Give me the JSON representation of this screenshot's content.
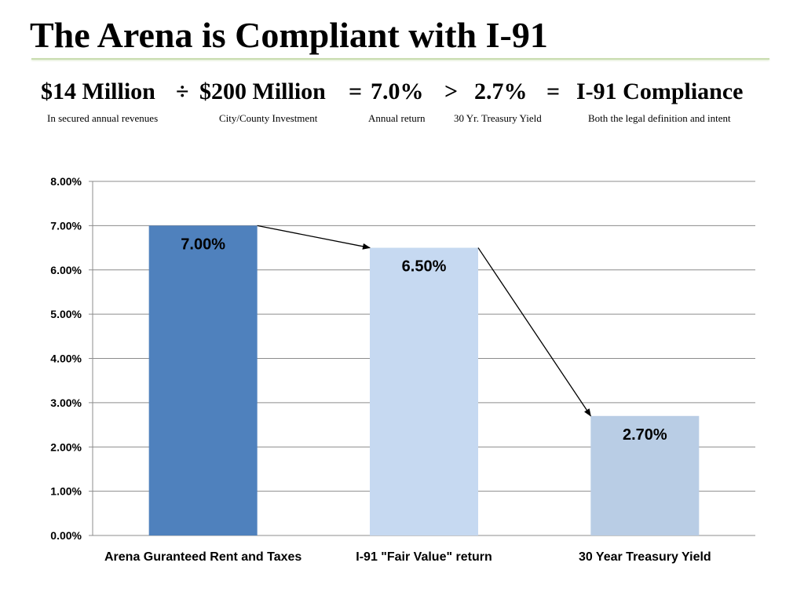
{
  "slide": {
    "title": "The Arena is Compliant with I-91",
    "equation": {
      "term1": "$14 Million",
      "op1": "÷",
      "term2": "$200 Million",
      "op2": "=",
      "term3": "7.0%",
      "op3": ">",
      "term4": "2.7%",
      "op4": "=",
      "term5": "I-91 Compliance",
      "sub1": "In secured annual revenues",
      "sub2": "City/County Investment",
      "sub3": "Annual return",
      "sub4": "30 Yr. Treasury Yield",
      "sub5": "Both the legal definition and intent"
    }
  },
  "chart_data": {
    "type": "bar",
    "categories": [
      "Arena Guranteed Rent and Taxes",
      "I-91 \"Fair Value\" return",
      "30 Year Treasury Yield"
    ],
    "values": [
      7.0,
      6.5,
      2.7
    ],
    "data_labels": [
      "7.00%",
      "6.50%",
      "2.70%"
    ],
    "bar_colors": [
      "#4f81bd",
      "#c6d9f1",
      "#b9cde5"
    ],
    "ylim": [
      0,
      8
    ],
    "yticks": [
      "0.00%",
      "1.00%",
      "2.00%",
      "3.00%",
      "4.00%",
      "5.00%",
      "6.00%",
      "7.00%",
      "8.00%"
    ],
    "grid": true,
    "arrows": [
      {
        "from": 0,
        "to": 1
      },
      {
        "from": 1,
        "to": 2
      }
    ]
  }
}
